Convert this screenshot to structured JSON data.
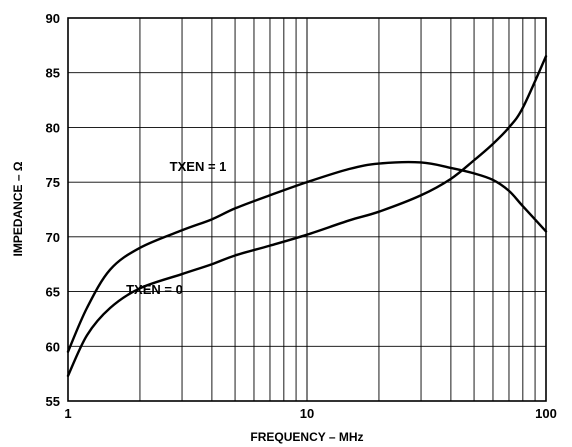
{
  "chart_data": {
    "type": "line",
    "title": "",
    "xlabel": "FREQUENCY – MHz",
    "ylabel": "IMPEDANCE – Ω",
    "xscale": "log",
    "xlim": [
      1,
      100
    ],
    "ylim": [
      55,
      90
    ],
    "x_ticks": [
      1,
      10,
      100
    ],
    "y_ticks": [
      55,
      60,
      65,
      70,
      75,
      80,
      85,
      90
    ],
    "grid": true,
    "annotations": [
      {
        "text": "TXEN = 1",
        "series": "TXEN = 1"
      },
      {
        "text": "TXEN = 0",
        "series": "TXEN = 0"
      }
    ],
    "series": [
      {
        "name": "TXEN = 1",
        "x": [
          1,
          1.2,
          1.5,
          2,
          3,
          4,
          5,
          7,
          10,
          15,
          20,
          30,
          40,
          50,
          60,
          70,
          80,
          100
        ],
        "y": [
          59.5,
          63.5,
          67,
          69,
          70.6,
          71.6,
          72.6,
          73.8,
          75,
          76.2,
          76.7,
          76.8,
          76.3,
          75.8,
          75.2,
          74.2,
          72.8,
          70.5
        ]
      },
      {
        "name": "TXEN = 0",
        "x": [
          1,
          1.2,
          1.5,
          2,
          3,
          4,
          5,
          7,
          10,
          15,
          20,
          30,
          40,
          50,
          60,
          70,
          80,
          100
        ],
        "y": [
          57.3,
          61,
          63.5,
          65.3,
          66.6,
          67.5,
          68.3,
          69.2,
          70.2,
          71.5,
          72.3,
          73.8,
          75.3,
          77,
          78.5,
          80,
          81.8,
          86.5
        ]
      }
    ]
  }
}
